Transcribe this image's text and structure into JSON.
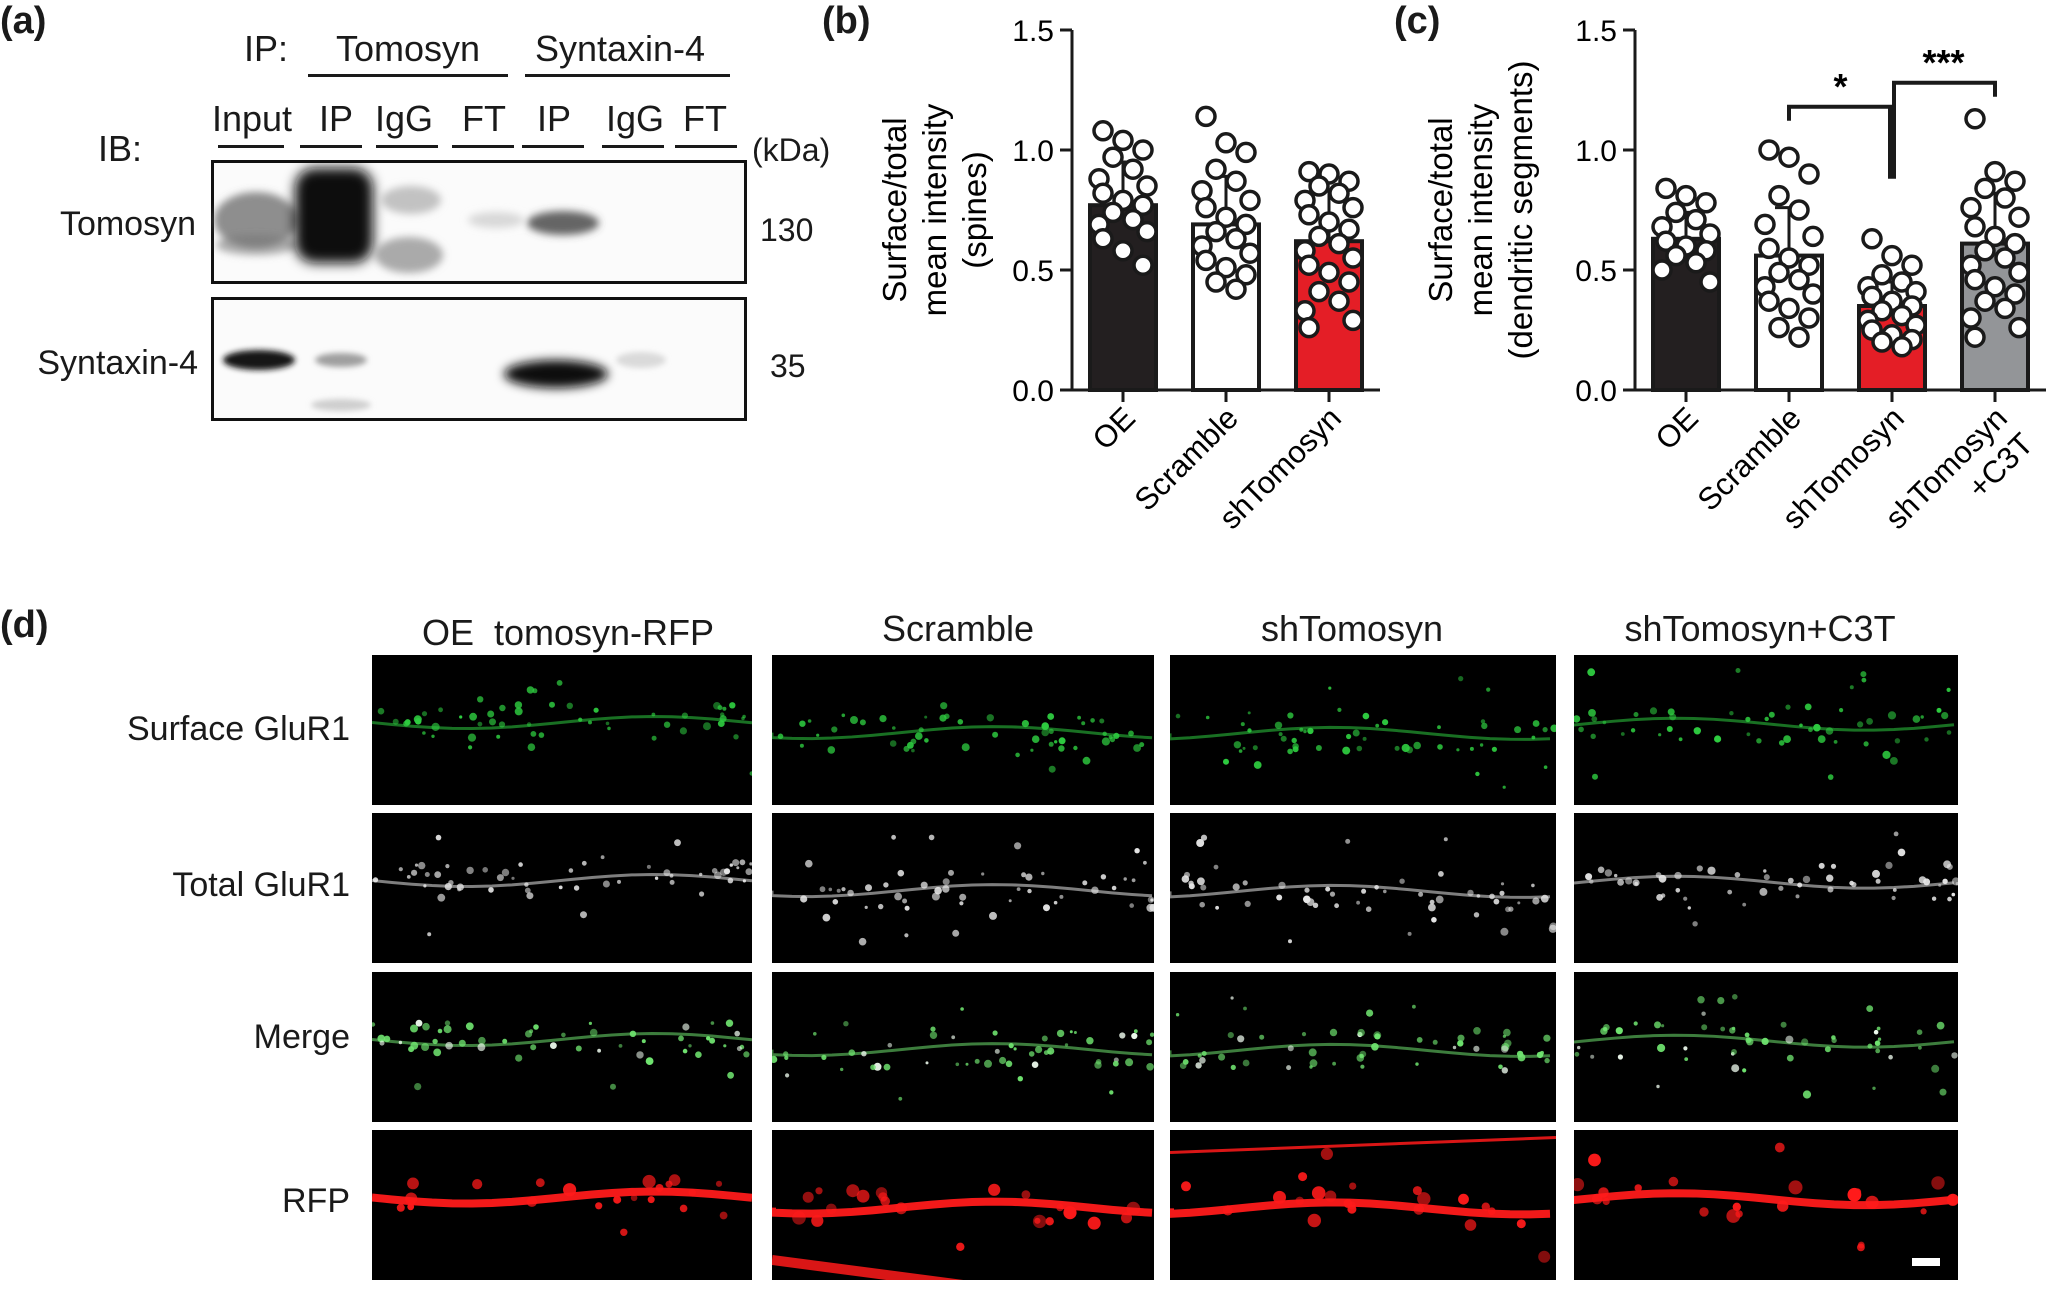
{
  "panel_a": {
    "label": "(a)",
    "ip_label": "IP:",
    "ib_label": "IB:",
    "ip_groups": [
      "Tomosyn",
      "Syntaxin-4"
    ],
    "lanes": [
      "Input",
      "IP",
      "IgG",
      "FT",
      "IP",
      "IgG",
      "FT"
    ],
    "kda_label": "(kDa)",
    "blots": [
      {
        "name": "Tomosyn",
        "kda": "130"
      },
      {
        "name": "Syntaxin-4",
        "kda": "35"
      }
    ]
  },
  "panel_b": {
    "label": "(b)",
    "ylabel_lines": [
      "Surface/total",
      "mean intensity",
      "(spines)"
    ]
  },
  "panel_c": {
    "label": "(c)",
    "ylabel_lines": [
      "Surface/total",
      "mean intensity",
      "(dendritic segments)"
    ],
    "sig": [
      "*",
      "***"
    ]
  },
  "chart_data": [
    {
      "type": "bar",
      "panel": "b",
      "ylabel": "Surface/total mean intensity (spines)",
      "ylim": [
        0,
        1.5
      ],
      "yticks": [
        "0.0",
        "0.5",
        "1.0",
        "1.5"
      ],
      "categories": [
        "OE",
        "Scramble",
        "shTomosyn"
      ],
      "values": [
        0.77,
        0.69,
        0.62
      ],
      "errors": [
        0.18,
        0.2,
        0.21
      ],
      "colors": [
        "#231f20",
        "#ffffff",
        "#e41e26"
      ],
      "points": [
        [
          1.08,
          1.04,
          1.0,
          0.97,
          0.92,
          0.88,
          0.85,
          0.82,
          0.79,
          0.77,
          0.74,
          0.71,
          0.69,
          0.66,
          0.63,
          0.58,
          0.52
        ],
        [
          1.14,
          1.03,
          0.99,
          0.92,
          0.87,
          0.83,
          0.79,
          0.76,
          0.72,
          0.69,
          0.66,
          0.63,
          0.6,
          0.57,
          0.54,
          0.51,
          0.48,
          0.45,
          0.42
        ],
        [
          0.91,
          0.9,
          0.87,
          0.85,
          0.82,
          0.79,
          0.76,
          0.73,
          0.7,
          0.67,
          0.64,
          0.61,
          0.58,
          0.55,
          0.52,
          0.49,
          0.45,
          0.41,
          0.37,
          0.33,
          0.29,
          0.26
        ]
      ]
    },
    {
      "type": "bar",
      "panel": "c",
      "ylabel": "Surface/total mean intensity (dendritic segments)",
      "ylim": [
        0,
        1.5
      ],
      "yticks": [
        "0.0",
        "0.5",
        "1.0",
        "1.5"
      ],
      "categories": [
        "OE",
        "Scramble",
        "shTomosyn",
        "shTomosyn\n+C3T"
      ],
      "values": [
        0.63,
        0.56,
        0.35,
        0.61
      ],
      "errors": [
        0.11,
        0.2,
        0.1,
        0.21
      ],
      "colors": [
        "#231f20",
        "#ffffff",
        "#e41e26",
        "#939598"
      ],
      "points": [
        [
          0.84,
          0.81,
          0.78,
          0.74,
          0.71,
          0.68,
          0.65,
          0.62,
          0.6,
          0.58,
          0.56,
          0.53,
          0.5,
          0.45
        ],
        [
          1.0,
          0.97,
          0.9,
          0.81,
          0.75,
          0.69,
          0.64,
          0.59,
          0.55,
          0.52,
          0.49,
          0.46,
          0.43,
          0.4,
          0.37,
          0.34,
          0.3,
          0.26,
          0.22
        ],
        [
          0.63,
          0.56,
          0.52,
          0.48,
          0.45,
          0.43,
          0.41,
          0.39,
          0.37,
          0.35,
          0.33,
          0.31,
          0.29,
          0.27,
          0.25,
          0.23,
          0.21,
          0.2,
          0.18
        ],
        [
          1.13,
          0.91,
          0.87,
          0.84,
          0.8,
          0.76,
          0.72,
          0.68,
          0.64,
          0.61,
          0.58,
          0.55,
          0.52,
          0.49,
          0.46,
          0.43,
          0.4,
          0.37,
          0.34,
          0.3,
          0.26,
          0.22
        ]
      ]
    }
  ],
  "panel_d": {
    "label": "(d)",
    "columns": [
      "OE  tomosyn-RFP",
      "Scramble",
      "shTomosyn",
      "shTomosyn+C3T"
    ],
    "rows": [
      {
        "label": "Surface GluR1",
        "color": "#2ecc40"
      },
      {
        "label": "Total GluR1",
        "color": "#e6e6e6"
      },
      {
        "label": "Merge",
        "color": "#6fe36f"
      },
      {
        "label": "RFP",
        "color": "#ff1a1a"
      }
    ]
  }
}
